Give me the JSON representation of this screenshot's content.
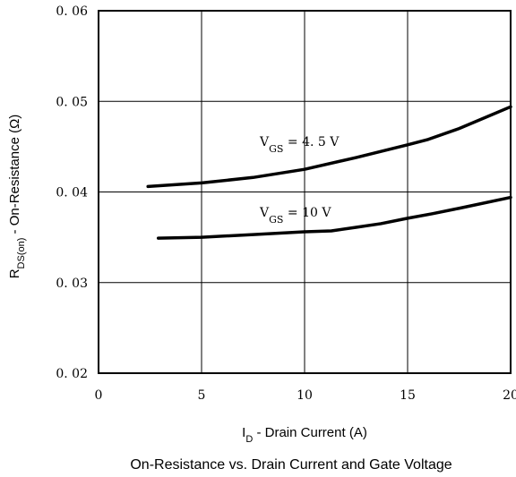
{
  "chart_data": {
    "type": "line",
    "title": "On-Resistance vs. Drain Current and Gate Voltage",
    "xlabel": {
      "main": "I",
      "sub": "D",
      "rest": " - Drain Current (A)"
    },
    "ylabel": {
      "main": "R",
      "sub": "DS(on)",
      "rest": " - On-Resistance (Ω)"
    },
    "xlim": [
      0,
      20
    ],
    "ylim": [
      0.02,
      0.06
    ],
    "x_ticks": [
      0,
      5,
      10,
      15,
      20
    ],
    "x_tick_labels": [
      "0",
      "5",
      "10",
      "15",
      "20"
    ],
    "y_ticks": [
      0.02,
      0.03,
      0.04,
      0.05,
      0.06
    ],
    "y_tick_labels": [
      "0. 02",
      "0. 03",
      "0. 04",
      "0. 05",
      "0. 06"
    ],
    "grid": true,
    "series": [
      {
        "name": "VGS = 4.5 V",
        "label_main": "V",
        "label_sub": "GS",
        "label_rest": " = 4. 5 V",
        "x": [
          2.4,
          5,
          7.5,
          10,
          12.5,
          15,
          16,
          17.5,
          20
        ],
        "y": [
          0.0406,
          0.041,
          0.0416,
          0.0425,
          0.0438,
          0.0452,
          0.0458,
          0.047,
          0.0494
        ]
      },
      {
        "name": "VGS = 10 V",
        "label_main": "V",
        "label_sub": "GS",
        "label_rest": " = 10 V",
        "x": [
          2.9,
          5,
          7.5,
          10,
          11.3,
          12.5,
          13.7,
          15,
          16.2,
          17.5,
          20
        ],
        "y": [
          0.0349,
          0.035,
          0.0353,
          0.0356,
          0.0357,
          0.0361,
          0.0365,
          0.0371,
          0.0376,
          0.0382,
          0.0394
        ]
      }
    ]
  }
}
